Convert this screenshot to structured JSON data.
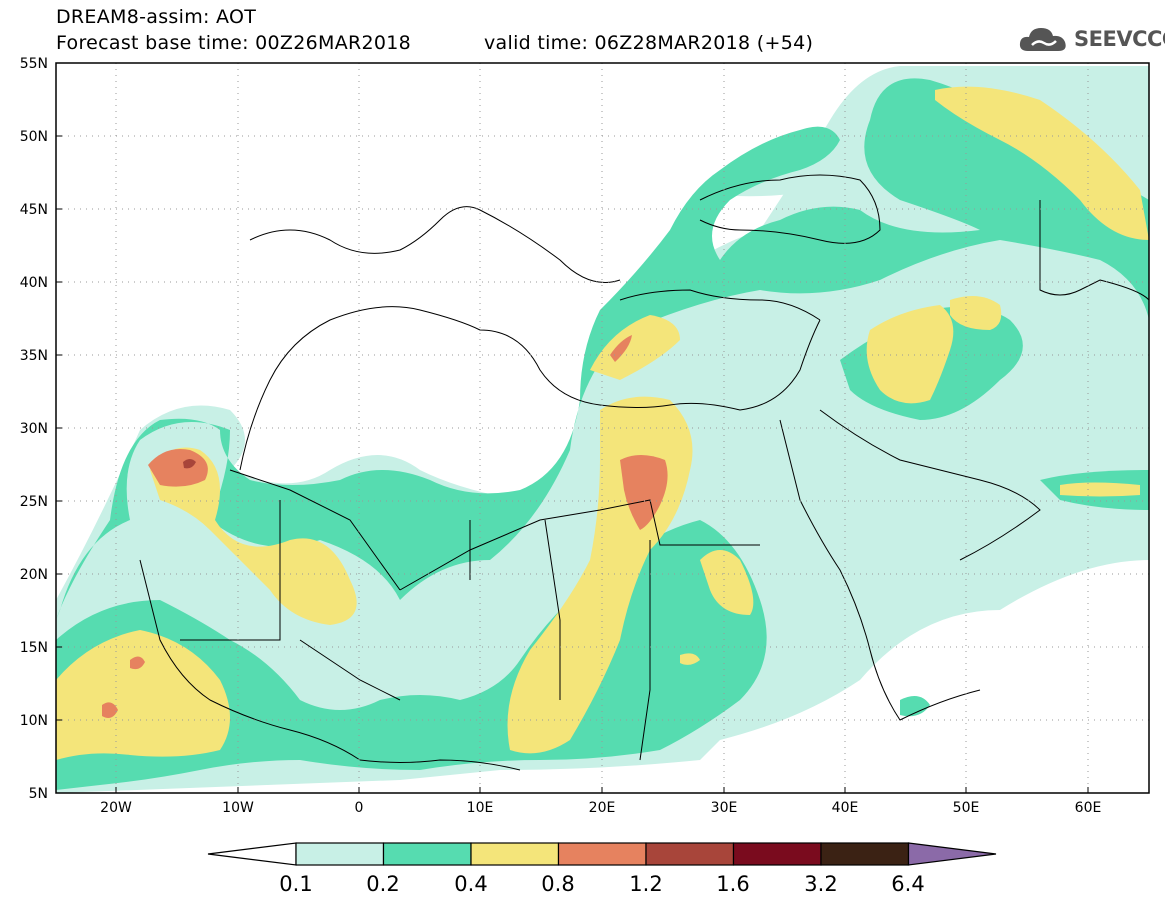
{
  "header": {
    "model": "DREAM8-assim: AOT",
    "base_time": "Forecast base time: 00Z26MAR2018",
    "valid_time": "valid time: 06Z28MAR2018 (+54)"
  },
  "logo": {
    "icon": "cloud-icon",
    "text": "SEEVCCC"
  },
  "map": {
    "lon_range": [
      -25,
      65
    ],
    "lat_range": [
      5,
      55
    ],
    "lat_ticks": [
      "55N",
      "50N",
      "45N",
      "40N",
      "35N",
      "30N",
      "25N",
      "20N",
      "15N",
      "10N",
      "5N"
    ],
    "lon_ticks": [
      "20W",
      "10W",
      "0",
      "10E",
      "20E",
      "30E",
      "40E",
      "50E",
      "60E"
    ],
    "grid": "dotted"
  },
  "colorbar": {
    "labels": [
      "0.1",
      "0.2",
      "0.4",
      "0.8",
      "1.2",
      "1.6",
      "3.2",
      "6.4"
    ],
    "colors": [
      "#ffffff",
      "#c8f0e6",
      "#56dcb0",
      "#f4e57a",
      "#e6825f",
      "#a8453a",
      "#7a0b1e",
      "#3b2214",
      "#8b6aa8"
    ]
  }
}
